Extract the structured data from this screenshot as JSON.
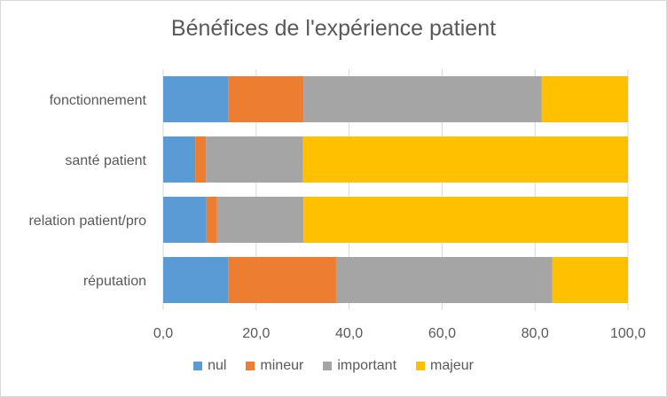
{
  "chart_data": {
    "type": "bar",
    "orientation": "horizontal",
    "stacked": true,
    "title": "Bénéfices de l'expérience patient",
    "categories": [
      "fonctionnement",
      "santé patient",
      "relation patient/pro",
      "réputation"
    ],
    "series": [
      {
        "name": "nul",
        "color": "#5B9BD5",
        "values": [
          14.0,
          6.9,
          9.3,
          14.0
        ]
      },
      {
        "name": "mineur",
        "color": "#ED7D31",
        "values": [
          16.2,
          2.3,
          2.3,
          23.2
        ]
      },
      {
        "name": "important",
        "color": "#A5A5A5",
        "values": [
          51.2,
          20.9,
          18.6,
          46.5
        ]
      },
      {
        "name": "majeur",
        "color": "#FFC000",
        "values": [
          18.6,
          69.9,
          69.8,
          16.3
        ]
      }
    ],
    "xlim": [
      0,
      100
    ],
    "xticks": [
      0,
      20,
      40,
      60,
      80,
      100
    ],
    "xtick_labels": [
      "0,0",
      "20,0",
      "40,0",
      "60,0",
      "80,0",
      "100,0"
    ],
    "grid": true,
    "legend_position": "bottom",
    "xlabel": "",
    "ylabel": ""
  }
}
